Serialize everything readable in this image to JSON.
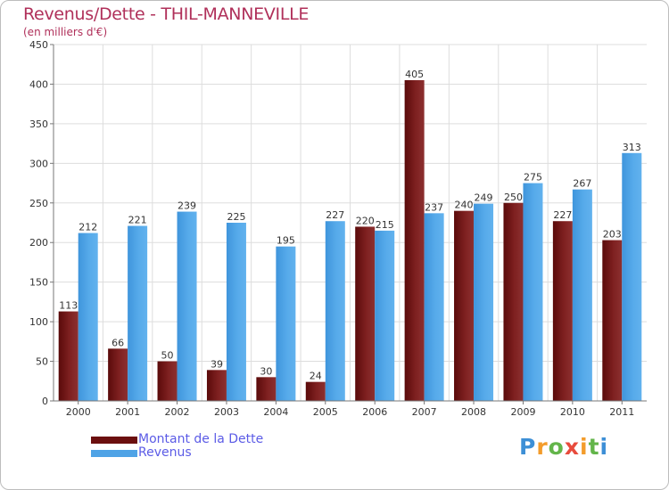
{
  "header": {
    "title": "Revenus/Dette - THIL-MANNEVILLE",
    "subtitle": "(en milliers d'€)"
  },
  "chart_data": {
    "type": "bar",
    "title": "Revenus/Dette - THIL-MANNEVILLE",
    "subtitle": "(en milliers d'€)",
    "xlabel": "",
    "ylabel": "",
    "ylim": [
      0,
      450
    ],
    "yticks": [
      0,
      50,
      100,
      150,
      200,
      250,
      300,
      350,
      400,
      450
    ],
    "grid": true,
    "legend_position": "bottom-left",
    "categories": [
      "2000",
      "2001",
      "2002",
      "2003",
      "2004",
      "2005",
      "2006",
      "2007",
      "2008",
      "2009",
      "2010",
      "2011"
    ],
    "series": [
      {
        "name": "Montant de la Dette",
        "color": "#7a1a1a",
        "values": [
          113,
          66,
          50,
          39,
          30,
          24,
          220,
          405,
          240,
          250,
          227,
          203
        ]
      },
      {
        "name": "Revenus",
        "color": "#4fa3e6",
        "values": [
          212,
          221,
          239,
          225,
          195,
          227,
          215,
          237,
          249,
          275,
          267,
          313
        ]
      }
    ]
  },
  "legend": {
    "items": [
      {
        "label": "Montant de la Dette",
        "color": "#6b0f0f"
      },
      {
        "label": "Revenus",
        "color": "#4fa3e6"
      }
    ]
  },
  "logo": {
    "letters": [
      "P",
      "r",
      "o",
      "x",
      "i",
      "t",
      "i"
    ]
  }
}
